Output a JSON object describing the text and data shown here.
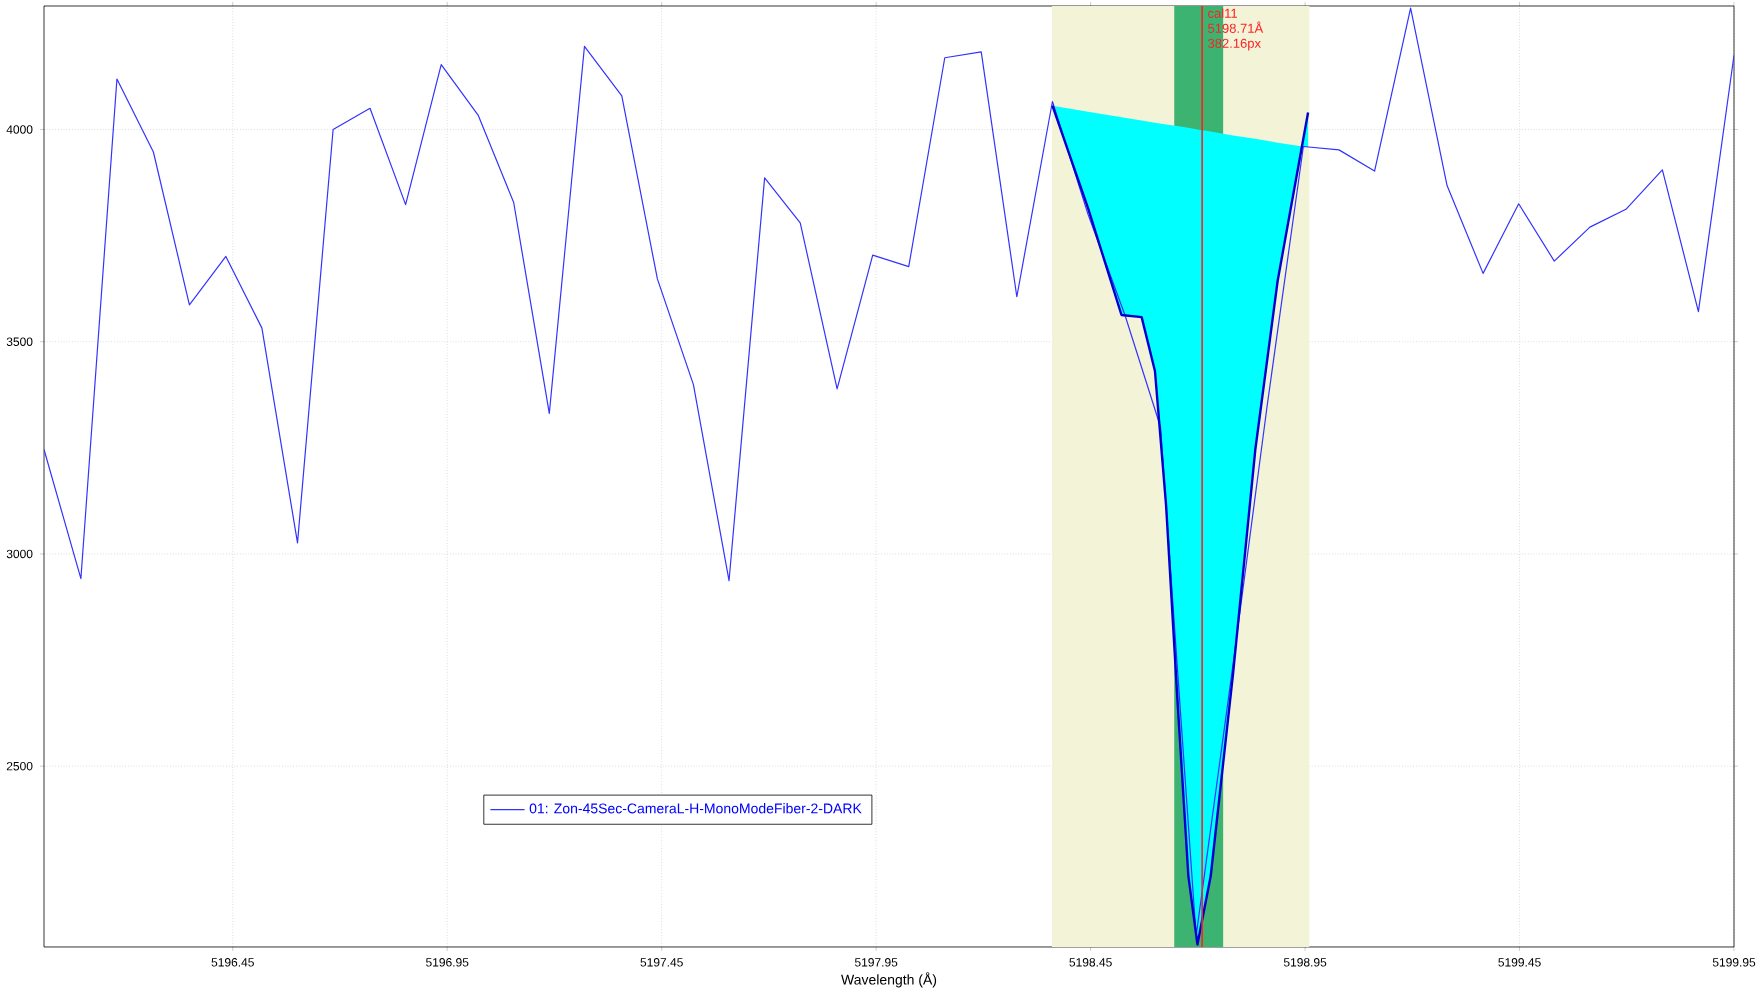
{
  "chart_data": {
    "type": "line",
    "xlabel": "Wavelength (Å)",
    "xlim": [
      5196.01,
      5199.95
    ],
    "ylim": [
      2074,
      4291
    ],
    "xticks": [
      5196.45,
      5196.95,
      5197.45,
      5197.95,
      5198.45,
      5198.95,
      5199.45,
      5199.95
    ],
    "yticks": [
      2500,
      3000,
      3500,
      4000
    ],
    "grid": true,
    "legend": "bottom",
    "marker": "none",
    "line_style": "solid",
    "series": [
      {
        "name": "01: Zon-45Sec-CameraL-H-MonoModeFiber-2-DARK",
        "color": "#3333ff",
        "x": [
          5196.01,
          5196.096,
          5196.18,
          5196.265,
          5196.349,
          5196.434,
          5196.518,
          5196.601,
          5196.684,
          5196.77,
          5196.853,
          5196.936,
          5197.022,
          5197.105,
          5197.188,
          5197.27,
          5197.357,
          5197.44,
          5197.524,
          5197.607,
          5197.69,
          5197.773,
          5197.859,
          5197.942,
          5198.026,
          5198.11,
          5198.195,
          5198.278,
          5198.361,
          5198.444,
          5198.53,
          5198.613,
          5198.696,
          5198.779,
          5198.862,
          5198.946,
          5199.029,
          5199.112,
          5199.196,
          5199.281,
          5199.365,
          5199.448,
          5199.531,
          5199.614,
          5199.698,
          5199.783,
          5199.867,
          5199.95
        ],
        "values": [
          3246,
          2942,
          4119,
          3947,
          3587,
          3701,
          3532,
          3026,
          4000,
          4050,
          3823,
          4153,
          4034,
          3828,
          3331,
          4196,
          4079,
          3648,
          3399,
          2937,
          3886,
          3780,
          3389,
          3704,
          3677,
          4169,
          4183,
          3606,
          4066,
          3800,
          3563,
          3299,
          2100,
          2717,
          3352,
          3960,
          3952,
          3902,
          4286,
          3868,
          3661,
          3825,
          3690,
          3770,
          3812,
          3905,
          3571,
          4175
        ]
      },
      {
        "color": "#0000cc",
        "x": [
          5198.361,
          5198.444,
          5198.522,
          5198.569,
          5198.6,
          5198.626,
          5198.652,
          5198.678,
          5198.699,
          5198.73,
          5198.782,
          5198.834,
          5198.886,
          5198.957
        ],
        "values": [
          4056,
          3815,
          3563,
          3558,
          3431,
          3114,
          2664,
          2241,
          2080,
          2241,
          2717,
          3246,
          3643,
          4040
        ],
        "lower": [
          4056,
          3815,
          3563,
          3558,
          3431,
          3114,
          2664,
          2241,
          2080,
          2241,
          2717,
          3246,
          3643,
          4040
        ],
        "upper": [
          4056,
          4042,
          4029,
          4021,
          4016,
          4012,
          4008,
          4004,
          4000,
          3995,
          3986,
          3978,
          3969,
          3958
        ]
      }
    ],
    "bands": [
      {
        "axis": "x",
        "from": 5198.36,
        "to": 5198.96,
        "color": "#f3f3d8"
      },
      {
        "axis": "x",
        "from": 5198.645,
        "to": 5198.759,
        "color": "#3cb371"
      }
    ],
    "ref_lines": [
      {
        "axis": "x",
        "value": 5198.71,
        "label": "cal11 5198.71Å 382.16px",
        "color": "#ff2020"
      }
    ]
  }
}
